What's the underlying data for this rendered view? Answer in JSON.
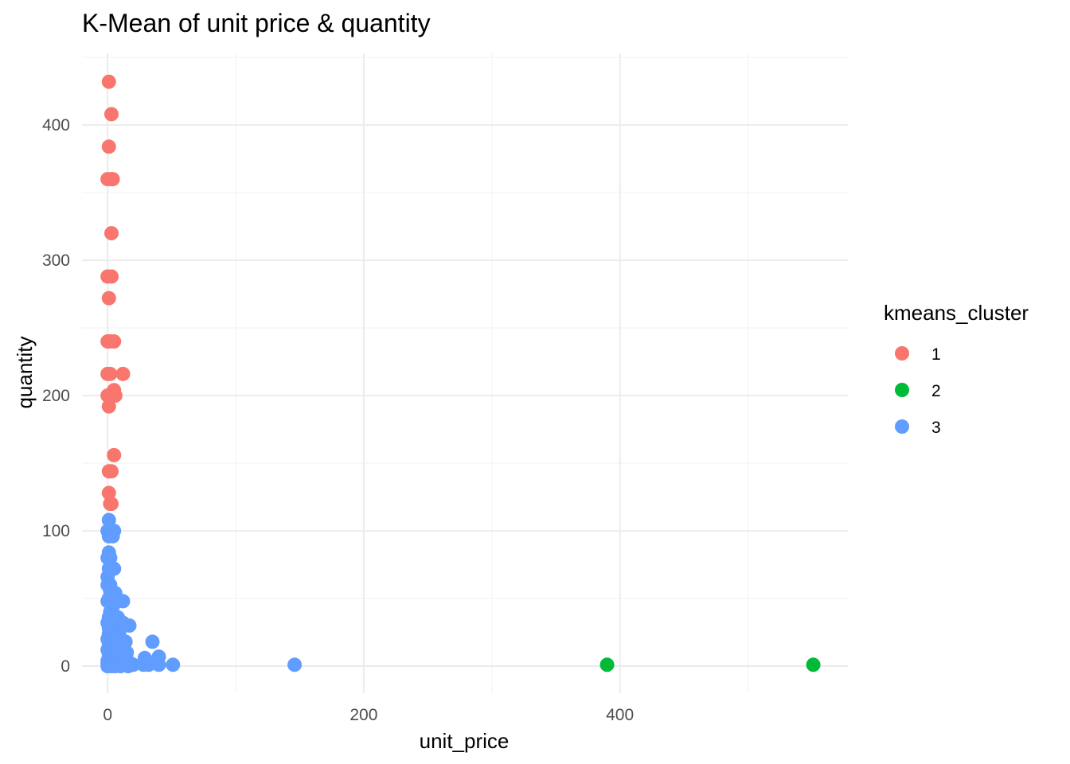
{
  "chart_data": {
    "type": "scatter",
    "title": "K-Mean of unit price & quantity",
    "xlabel": "unit_price",
    "ylabel": "quantity",
    "xlim": [
      -20,
      578
    ],
    "ylim": [
      -20,
      453
    ],
    "x_ticks": [
      0,
      200,
      400
    ],
    "y_ticks": [
      0,
      100,
      200,
      300,
      400
    ],
    "grid": true,
    "legend": {
      "title": "kmeans_cluster",
      "position": "right",
      "entries": [
        {
          "label": "1",
          "color": "#F8766D"
        },
        {
          "label": "2",
          "color": "#00BA38"
        },
        {
          "label": "3",
          "color": "#619CFF"
        }
      ]
    },
    "series": [
      {
        "name": "1",
        "color": "#F8766D",
        "points": [
          [
            1,
            432
          ],
          [
            3,
            408
          ],
          [
            1,
            384
          ],
          [
            0,
            360
          ],
          [
            3,
            360
          ],
          [
            4,
            360
          ],
          [
            3,
            320
          ],
          [
            0,
            288
          ],
          [
            3,
            288
          ],
          [
            1,
            272
          ],
          [
            0,
            240
          ],
          [
            2,
            240
          ],
          [
            5,
            240
          ],
          [
            0,
            216
          ],
          [
            2,
            216
          ],
          [
            12,
            216
          ],
          [
            5,
            204
          ],
          [
            0,
            200
          ],
          [
            4,
            200
          ],
          [
            6,
            200
          ],
          [
            1,
            192
          ],
          [
            5,
            156
          ],
          [
            1,
            144
          ],
          [
            3,
            144
          ],
          [
            1,
            128
          ],
          [
            2,
            120
          ],
          [
            3,
            120
          ]
        ]
      },
      {
        "name": "2",
        "color": "#00BA38",
        "points": [
          [
            390,
            1
          ],
          [
            551,
            1
          ]
        ]
      },
      {
        "name": "3",
        "color": "#619CFF",
        "points": [
          [
            1,
            108
          ],
          [
            0,
            100
          ],
          [
            3,
            100
          ],
          [
            5,
            100
          ],
          [
            1,
            96
          ],
          [
            4,
            96
          ],
          [
            1,
            84
          ],
          [
            0,
            80
          ],
          [
            2,
            80
          ],
          [
            1,
            72
          ],
          [
            5,
            72
          ],
          [
            0,
            60
          ],
          [
            2,
            60
          ],
          [
            1,
            50
          ],
          [
            4,
            50
          ],
          [
            6,
            54
          ],
          [
            12,
            48
          ],
          [
            0,
            48
          ],
          [
            2,
            40
          ],
          [
            1,
            36
          ],
          [
            5,
            36
          ],
          [
            8,
            36
          ],
          [
            0,
            32
          ],
          [
            3,
            32
          ],
          [
            6,
            32
          ],
          [
            12,
            32
          ],
          [
            17,
            30
          ],
          [
            1,
            24
          ],
          [
            3,
            24
          ],
          [
            6,
            24
          ],
          [
            9,
            24
          ],
          [
            0,
            20
          ],
          [
            4,
            20
          ],
          [
            8,
            20
          ],
          [
            14,
            18
          ],
          [
            35,
            18
          ],
          [
            1,
            16
          ],
          [
            3,
            16
          ],
          [
            7,
            12
          ],
          [
            0,
            12
          ],
          [
            2,
            12
          ],
          [
            10,
            10
          ],
          [
            15,
            10
          ],
          [
            1,
            8
          ],
          [
            4,
            8
          ],
          [
            6,
            6
          ],
          [
            40,
            7
          ],
          [
            0,
            4
          ],
          [
            3,
            4
          ],
          [
            8,
            4
          ],
          [
            12,
            4
          ],
          [
            18,
            2
          ],
          [
            29,
            6
          ],
          [
            0,
            2
          ],
          [
            2,
            2
          ],
          [
            5,
            2
          ],
          [
            9,
            2
          ],
          [
            14,
            2
          ],
          [
            20,
            1
          ],
          [
            28,
            1
          ],
          [
            32,
            1
          ],
          [
            40,
            1
          ],
          [
            51,
            1
          ],
          [
            146,
            1
          ],
          [
            0,
            0
          ],
          [
            3,
            0
          ],
          [
            6,
            0
          ],
          [
            10,
            0
          ],
          [
            16,
            0
          ],
          [
            1,
            28
          ],
          [
            4,
            44
          ],
          [
            2,
            56
          ],
          [
            0,
            66
          ],
          [
            7,
            14
          ],
          [
            11,
            6
          ]
        ]
      }
    ]
  }
}
